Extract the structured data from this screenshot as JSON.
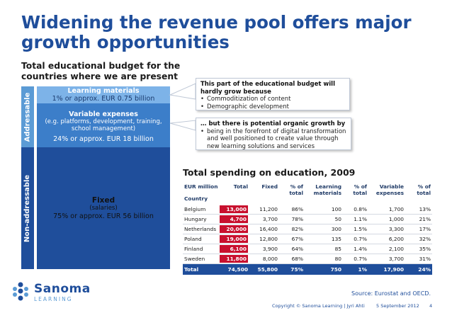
{
  "title": "Widening the revenue pool offers major growth opportunities",
  "subtitle": "Total educational budget for the countries where we are present",
  "side_labels": {
    "addressable": "Addressable",
    "non_addressable": "Non-addressable"
  },
  "segments": {
    "learning_materials": {
      "heading": "Learning materials",
      "value": "1% or approx. EUR 0.75 billion"
    },
    "variable_expenses": {
      "heading": "Variable expenses",
      "sub": "(e.g. platforms, development, training, school management)",
      "value": "24% or approx. EUR 18 billion"
    },
    "fixed": {
      "heading": "Fixed",
      "sub": "(salaries)",
      "value": "75% or approx. EUR 56 billion"
    }
  },
  "callouts": [
    {
      "heading": "This part of the educational budget will hardly grow because",
      "items": [
        "Commoditization of content",
        "Demographic development"
      ]
    },
    {
      "heading": "… but there is potential organic growth by",
      "items": [
        "being in the forefront of digital transformation and well positioned to create value through new learning solutions and services"
      ]
    }
  ],
  "table": {
    "title": "Total spending on education, 2009",
    "headers": [
      "EUR million",
      "Total",
      "Fixed",
      "% of total",
      "Learning materials",
      "% of total",
      "Variable expenses",
      "% of total"
    ],
    "country_label": "Country",
    "rows": [
      [
        "Belgium",
        "13,000",
        "11,200",
        "86%",
        "100",
        "0.8%",
        "1,700",
        "13%"
      ],
      [
        "Hungary",
        "4,700",
        "3,700",
        "78%",
        "50",
        "1.1%",
        "1,000",
        "21%"
      ],
      [
        "Netherlands",
        "20,000",
        "16,400",
        "82%",
        "300",
        "1.5%",
        "3,300",
        "17%"
      ],
      [
        "Poland",
        "19,000",
        "12,800",
        "67%",
        "135",
        "0.7%",
        "6,200",
        "32%"
      ],
      [
        "Finland",
        "6,100",
        "3,900",
        "64%",
        "85",
        "1.4%",
        "2,100",
        "35%"
      ],
      [
        "Sweden",
        "11,800",
        "8,000",
        "68%",
        "80",
        "0.7%",
        "3,700",
        "31%"
      ]
    ],
    "total_row": [
      "Total",
      "74,500",
      "55,800",
      "75%",
      "750",
      "1%",
      "17,900",
      "24%"
    ]
  },
  "logo": {
    "name": "Sanoma",
    "sub": "LEARNING"
  },
  "source": "Source: Eurostat and OECD.",
  "footer": {
    "copyright": "Copyright © Sanoma Learning | Jyri Ahti",
    "date": "5 September 2012",
    "page": "4"
  },
  "colors": {
    "brand_blue": "#1f4e9b",
    "light_blue": "#5b9bd5",
    "highlight_red": "#c8102e"
  }
}
